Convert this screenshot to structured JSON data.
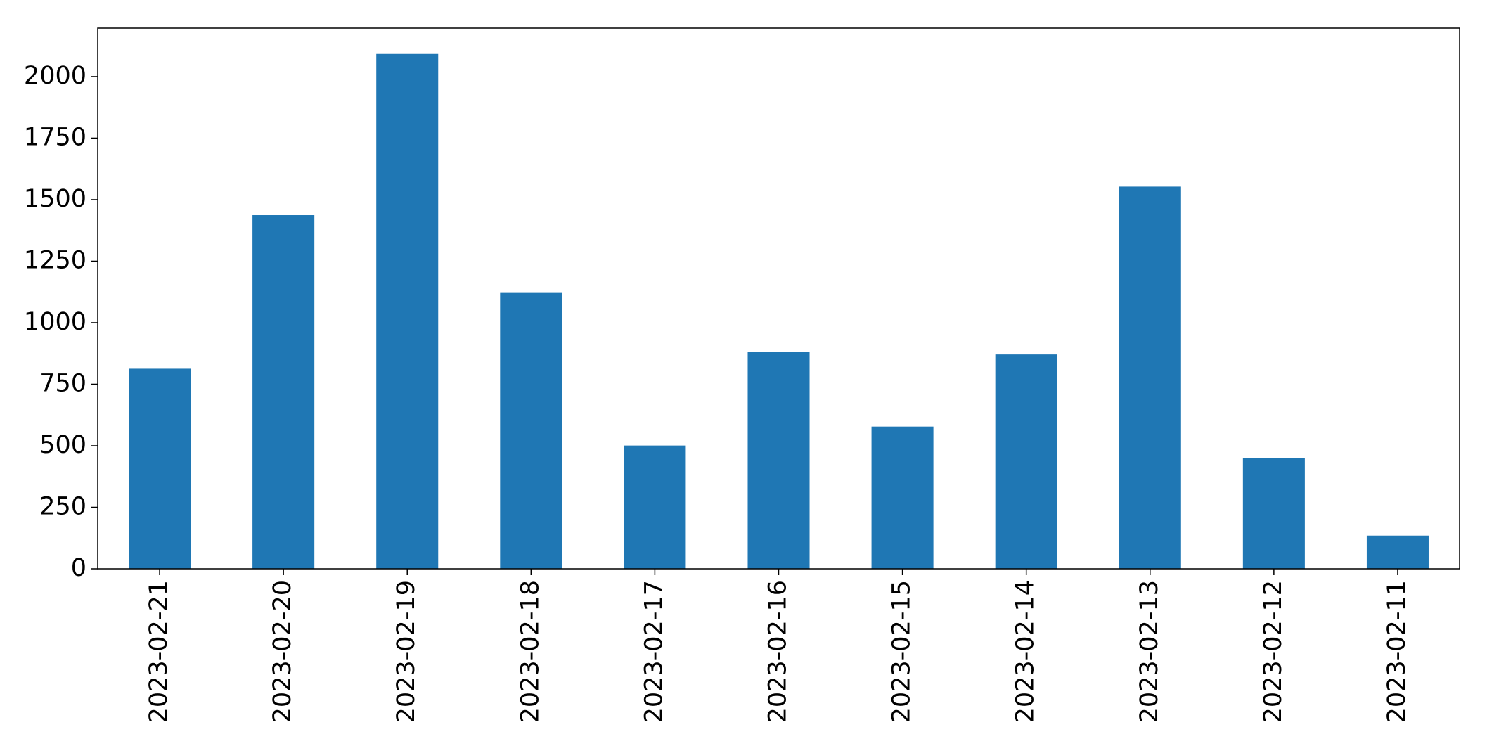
{
  "chart_data": {
    "type": "bar",
    "categories": [
      "2023-02-21",
      "2023-02-20",
      "2023-02-19",
      "2023-02-18",
      "2023-02-17",
      "2023-02-16",
      "2023-02-15",
      "2023-02-14",
      "2023-02-13",
      "2023-02-12",
      "2023-02-11"
    ],
    "values": [
      813,
      1437,
      2092,
      1121,
      501,
      882,
      578,
      871,
      1553,
      451,
      135
    ],
    "color": "#1f77b4",
    "ylim": [
      0,
      2197
    ],
    "yticks": [
      0,
      250,
      500,
      750,
      1000,
      1250,
      1500,
      1750,
      2000
    ],
    "grid": false
  }
}
